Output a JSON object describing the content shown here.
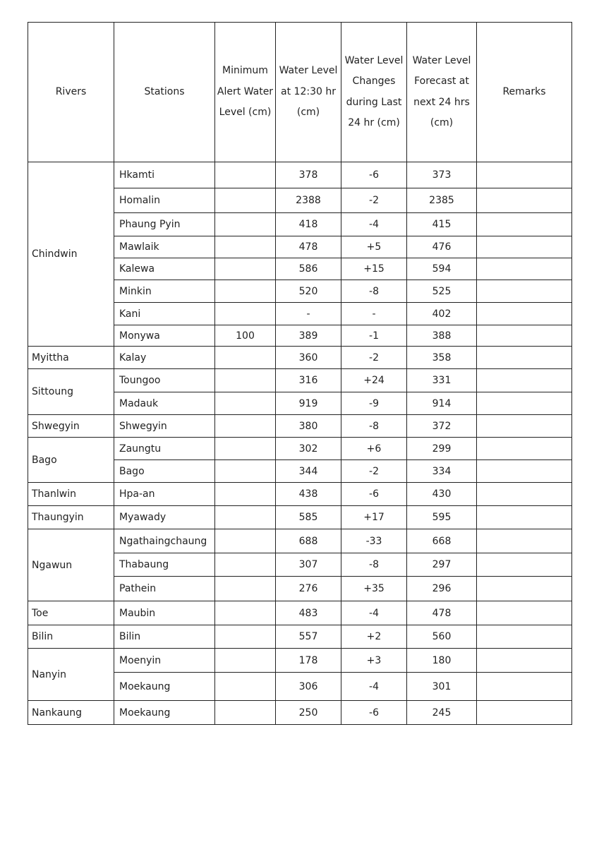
{
  "table": {
    "headers": [
      "Rivers",
      "Stations",
      "Minimum Alert Water Level (cm)",
      "Water Level at 12:30 hr (cm)",
      "Water Level Changes during Last 24 hr (cm)",
      "Water Level Forecast at next 24 hrs (cm)",
      "Remarks"
    ],
    "rivers": [
      {
        "name": "Chindwin",
        "stations": [
          {
            "station": "Hkamti",
            "alert": "",
            "level": "378",
            "change": "-6",
            "forecast": "373",
            "remarks": ""
          },
          {
            "station": "Homalin",
            "alert": "",
            "level": "2388",
            "change": "-2",
            "forecast": "2385",
            "remarks": ""
          },
          {
            "station": "Phaung Pyin",
            "alert": "",
            "level": "418",
            "change": "-4",
            "forecast": "415",
            "remarks": ""
          },
          {
            "station": "Mawlaik",
            "alert": "",
            "level": "478",
            "change": "+5",
            "forecast": "476",
            "remarks": ""
          },
          {
            "station": "Kalewa",
            "alert": "",
            "level": "586",
            "change": "+15",
            "forecast": "594",
            "remarks": ""
          },
          {
            "station": "Minkin",
            "alert": "",
            "level": "520",
            "change": "-8",
            "forecast": "525",
            "remarks": ""
          },
          {
            "station": "Kani",
            "alert": "",
            "level": "-",
            "change": "-",
            "forecast": "402",
            "remarks": ""
          },
          {
            "station": "Monywa",
            "alert": "100",
            "level": "389",
            "change": "-1",
            "forecast": "388",
            "remarks": ""
          }
        ]
      },
      {
        "name": "Myittha",
        "stations": [
          {
            "station": "Kalay",
            "alert": "",
            "level": "360",
            "change": "-2",
            "forecast": "358",
            "remarks": ""
          }
        ]
      },
      {
        "name": "Sittoung",
        "stations": [
          {
            "station": "Toungoo",
            "alert": "",
            "level": "316",
            "change": "+24",
            "forecast": "331",
            "remarks": ""
          },
          {
            "station": "Madauk",
            "alert": "",
            "level": "919",
            "change": "-9",
            "forecast": "914",
            "remarks": ""
          }
        ]
      },
      {
        "name": "Shwegyin",
        "stations": [
          {
            "station": "Shwegyin",
            "alert": "",
            "level": "380",
            "change": "-8",
            "forecast": "372",
            "remarks": ""
          }
        ]
      },
      {
        "name": "Bago",
        "stations": [
          {
            "station": "Zaungtu",
            "alert": "",
            "level": "302",
            "change": "+6",
            "forecast": "299",
            "remarks": ""
          },
          {
            "station": "Bago",
            "alert": "",
            "level": "344",
            "change": "-2",
            "forecast": "334",
            "remarks": ""
          }
        ]
      },
      {
        "name": "Thanlwin",
        "stations": [
          {
            "station": "Hpa-an",
            "alert": "",
            "level": "438",
            "change": "-6",
            "forecast": "430",
            "remarks": ""
          }
        ]
      },
      {
        "name": "Thaungyin",
        "stations": [
          {
            "station": "Myawady",
            "alert": "",
            "level": "585",
            "change": "+17",
            "forecast": "595",
            "remarks": ""
          }
        ]
      },
      {
        "name": "Ngawun",
        "stations": [
          {
            "station": "Ngathaingchaung",
            "alert": "",
            "level": "688",
            "change": "-33",
            "forecast": "668",
            "remarks": ""
          },
          {
            "station": "Thabaung",
            "alert": "",
            "level": "307",
            "change": "-8",
            "forecast": "297",
            "remarks": ""
          },
          {
            "station": "Pathein",
            "alert": "",
            "level": "276",
            "change": "+35",
            "forecast": "296",
            "remarks": ""
          }
        ]
      },
      {
        "name": "Toe",
        "stations": [
          {
            "station": "Maubin",
            "alert": "",
            "level": "483",
            "change": "-4",
            "forecast": "478",
            "remarks": ""
          }
        ]
      },
      {
        "name": "Bilin",
        "stations": [
          {
            "station": "Bilin",
            "alert": "",
            "level": "557",
            "change": "+2",
            "forecast": "560",
            "remarks": ""
          }
        ]
      },
      {
        "name": "Nanyin",
        "stations": [
          {
            "station": "Moenyin",
            "alert": "",
            "level": "178",
            "change": "+3",
            "forecast": "180",
            "remarks": ""
          },
          {
            "station": "Moekaung",
            "alert": "",
            "level": "306",
            "change": "-4",
            "forecast": "301",
            "remarks": ""
          }
        ]
      },
      {
        "name": "Nankaung",
        "stations": [
          {
            "station": "Moekaung",
            "alert": "",
            "level": "250",
            "change": "-6",
            "forecast": "245",
            "remarks": ""
          }
        ]
      }
    ]
  }
}
